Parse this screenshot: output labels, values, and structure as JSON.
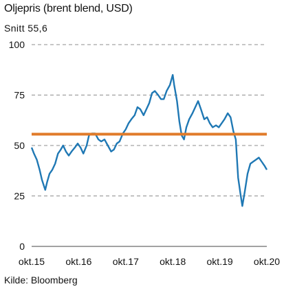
{
  "chart_data": {
    "type": "line",
    "title": "Oljepris (brent blend, USD)",
    "subtitle": "Snitt 55,6",
    "source": "Kilde: Bloomberg",
    "ylim": [
      0,
      100
    ],
    "yticks": [
      0,
      25,
      50,
      75,
      100
    ],
    "xlim": [
      2015.75,
      2020.75
    ],
    "xticks": [
      {
        "x": 2015.75,
        "label": "okt.15"
      },
      {
        "x": 2016.75,
        "label": "okt.16"
      },
      {
        "x": 2017.75,
        "label": "okt.17"
      },
      {
        "x": 2018.75,
        "label": "okt.18"
      },
      {
        "x": 2019.75,
        "label": "okt.19"
      },
      {
        "x": 2020.75,
        "label": "okt.20"
      }
    ],
    "grid": "horizontal dashed",
    "average": {
      "value": 55.6,
      "color": "#e07b2a"
    },
    "series": [
      {
        "color": "#1f78b4",
        "points": [
          [
            2015.75,
            49
          ],
          [
            2015.8,
            46
          ],
          [
            2015.86,
            43
          ],
          [
            2015.92,
            38
          ],
          [
            2015.97,
            33
          ],
          [
            2016.04,
            28
          ],
          [
            2016.08,
            32
          ],
          [
            2016.13,
            36
          ],
          [
            2016.19,
            38
          ],
          [
            2016.25,
            41
          ],
          [
            2016.31,
            46
          ],
          [
            2016.37,
            48
          ],
          [
            2016.42,
            50
          ],
          [
            2016.48,
            47
          ],
          [
            2016.54,
            45
          ],
          [
            2016.6,
            47
          ],
          [
            2016.67,
            49
          ],
          [
            2016.73,
            51
          ],
          [
            2016.79,
            49
          ],
          [
            2016.85,
            46
          ],
          [
            2016.92,
            50
          ],
          [
            2016.97,
            55
          ],
          [
            2017.03,
            56
          ],
          [
            2017.1,
            56
          ],
          [
            2017.17,
            53
          ],
          [
            2017.23,
            52
          ],
          [
            2017.3,
            53
          ],
          [
            2017.37,
            50
          ],
          [
            2017.44,
            47
          ],
          [
            2017.5,
            48
          ],
          [
            2017.56,
            51
          ],
          [
            2017.62,
            52
          ],
          [
            2017.69,
            56
          ],
          [
            2017.75,
            58
          ],
          [
            2017.81,
            61
          ],
          [
            2017.87,
            63
          ],
          [
            2017.94,
            65
          ],
          [
            2018.0,
            69
          ],
          [
            2018.06,
            68
          ],
          [
            2018.13,
            65
          ],
          [
            2018.19,
            68
          ],
          [
            2018.25,
            71
          ],
          [
            2018.31,
            76
          ],
          [
            2018.37,
            77
          ],
          [
            2018.44,
            75
          ],
          [
            2018.5,
            73
          ],
          [
            2018.56,
            73
          ],
          [
            2018.62,
            77
          ],
          [
            2018.69,
            80
          ],
          [
            2018.75,
            85
          ],
          [
            2018.78,
            80
          ],
          [
            2018.84,
            72
          ],
          [
            2018.89,
            62
          ],
          [
            2018.94,
            55
          ],
          [
            2018.99,
            53
          ],
          [
            2019.04,
            59
          ],
          [
            2019.1,
            63
          ],
          [
            2019.17,
            66
          ],
          [
            2019.23,
            69
          ],
          [
            2019.29,
            72
          ],
          [
            2019.35,
            68
          ],
          [
            2019.42,
            63
          ],
          [
            2019.48,
            64
          ],
          [
            2019.54,
            61
          ],
          [
            2019.6,
            59
          ],
          [
            2019.67,
            60
          ],
          [
            2019.73,
            59
          ],
          [
            2019.79,
            61
          ],
          [
            2019.85,
            63
          ],
          [
            2019.92,
            66
          ],
          [
            2019.98,
            64
          ],
          [
            2020.04,
            57
          ],
          [
            2020.09,
            53
          ],
          [
            2020.14,
            34
          ],
          [
            2020.19,
            26
          ],
          [
            2020.23,
            20
          ],
          [
            2020.28,
            27
          ],
          [
            2020.34,
            36
          ],
          [
            2020.4,
            41
          ],
          [
            2020.46,
            42
          ],
          [
            2020.52,
            43
          ],
          [
            2020.58,
            44
          ],
          [
            2020.64,
            42
          ],
          [
            2020.7,
            40
          ],
          [
            2020.75,
            38
          ]
        ]
      }
    ]
  }
}
